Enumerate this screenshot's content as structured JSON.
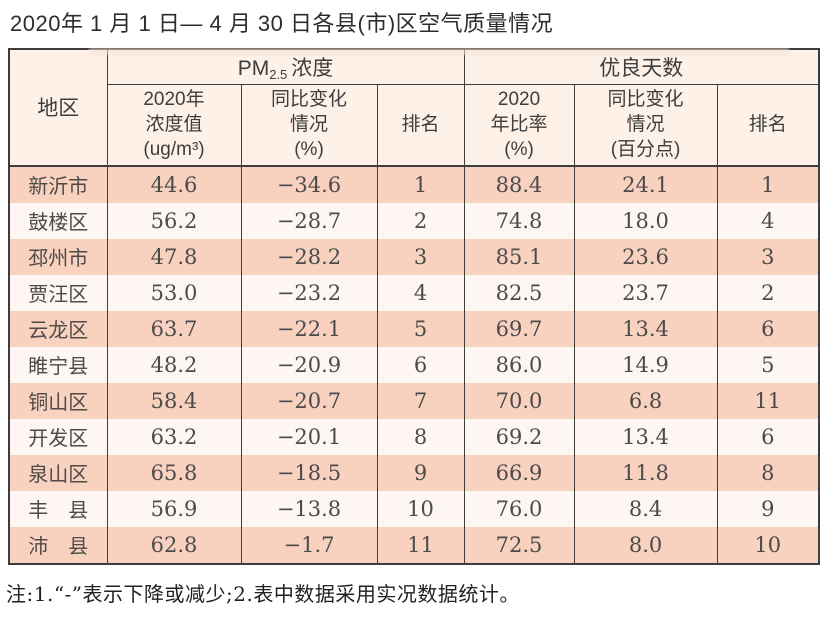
{
  "title": "2020年 1 月 1 日— 4 月 30 日各县(市)区空气质量情况",
  "table": {
    "header": {
      "region": "地区",
      "pm25_prefix": "PM",
      "pm25_sub": "2.5",
      "pm25_suffix": "浓度",
      "good_days": "优良天数",
      "sub": [
        "2020年\n浓度值\n(ug/m³)",
        "同比变化\n情况\n(%)",
        "排名",
        "2020\n年比率\n(%)",
        "同比变化\n情况\n(百分点)",
        "排名"
      ]
    },
    "rows": [
      {
        "region": "新沂市",
        "pm_value": "44.6",
        "pm_change": "−34.6",
        "pm_rank": "1",
        "good_rate": "88.4",
        "good_change": "24.1",
        "good_rank": "1"
      },
      {
        "region": "鼓楼区",
        "pm_value": "56.2",
        "pm_change": "−28.7",
        "pm_rank": "2",
        "good_rate": "74.8",
        "good_change": "18.0",
        "good_rank": "4"
      },
      {
        "region": "邳州市",
        "pm_value": "47.8",
        "pm_change": "−28.2",
        "pm_rank": "3",
        "good_rate": "85.1",
        "good_change": "23.6",
        "good_rank": "3"
      },
      {
        "region": "贾汪区",
        "pm_value": "53.0",
        "pm_change": "−23.2",
        "pm_rank": "4",
        "good_rate": "82.5",
        "good_change": "23.7",
        "good_rank": "2"
      },
      {
        "region": "云龙区",
        "pm_value": "63.7",
        "pm_change": "−22.1",
        "pm_rank": "5",
        "good_rate": "69.7",
        "good_change": "13.4",
        "good_rank": "6"
      },
      {
        "region": "睢宁县",
        "pm_value": "48.2",
        "pm_change": "−20.9",
        "pm_rank": "6",
        "good_rate": "86.0",
        "good_change": "14.9",
        "good_rank": "5"
      },
      {
        "region": "铜山区",
        "pm_value": "58.4",
        "pm_change": "−20.7",
        "pm_rank": "7",
        "good_rate": "70.0",
        "good_change": "6.8",
        "good_rank": "11"
      },
      {
        "region": "开发区",
        "pm_value": "63.2",
        "pm_change": "−20.1",
        "pm_rank": "8",
        "good_rate": "69.2",
        "good_change": "13.4",
        "good_rank": "6"
      },
      {
        "region": "泉山区",
        "pm_value": "65.8",
        "pm_change": "−18.5",
        "pm_rank": "9",
        "good_rate": "66.9",
        "good_change": "11.8",
        "good_rank": "8"
      },
      {
        "region": "丰　县",
        "pm_value": "56.9",
        "pm_change": "−13.8",
        "pm_rank": "10",
        "good_rate": "76.0",
        "good_change": "8.4",
        "good_rank": "9"
      },
      {
        "region": "沛　县",
        "pm_value": "62.8",
        "pm_change": "−1.7",
        "pm_rank": "11",
        "good_rate": "72.5",
        "good_change": "8.0",
        "good_rank": "10"
      }
    ]
  },
  "footnote": "注:1.“-”表示下降或减少;2.表中数据采用实况数据统计。",
  "colors": {
    "row_pink": "#f8d2bf",
    "row_light": "#fdf6f2",
    "header_bg": "#fdf1e8",
    "border": "#3d3d3d",
    "title_text": "#2d2d2d",
    "cell_text": "#4b4b4b"
  },
  "chart_data": {
    "type": "table",
    "title": "2020年 1 月 1 日— 4 月 30 日各县(市)区空气质量情况",
    "columns": [
      "地区",
      "PM2.5浓度 2020年浓度值(ug/m³)",
      "PM2.5浓度 同比变化情况(%)",
      "PM2.5浓度 排名",
      "优良天数 2020年比率(%)",
      "优良天数 同比变化情况(百分点)",
      "优良天数 排名"
    ],
    "rows": [
      [
        "新沂市",
        44.6,
        -34.6,
        1,
        88.4,
        24.1,
        1
      ],
      [
        "鼓楼区",
        56.2,
        -28.7,
        2,
        74.8,
        18.0,
        4
      ],
      [
        "邳州市",
        47.8,
        -28.2,
        3,
        85.1,
        23.6,
        3
      ],
      [
        "贾汪区",
        53.0,
        -23.2,
        4,
        82.5,
        23.7,
        2
      ],
      [
        "云龙区",
        63.7,
        -22.1,
        5,
        69.7,
        13.4,
        6
      ],
      [
        "睢宁县",
        48.2,
        -20.9,
        6,
        86.0,
        14.9,
        5
      ],
      [
        "铜山区",
        58.4,
        -20.7,
        7,
        70.0,
        6.8,
        11
      ],
      [
        "开发区",
        63.2,
        -20.1,
        8,
        69.2,
        13.4,
        6
      ],
      [
        "泉山区",
        65.8,
        -18.5,
        9,
        66.9,
        11.8,
        8
      ],
      [
        "丰县",
        56.9,
        -13.8,
        10,
        76.0,
        8.4,
        9
      ],
      [
        "沛县",
        62.8,
        -1.7,
        11,
        72.5,
        8.0,
        10
      ]
    ]
  }
}
